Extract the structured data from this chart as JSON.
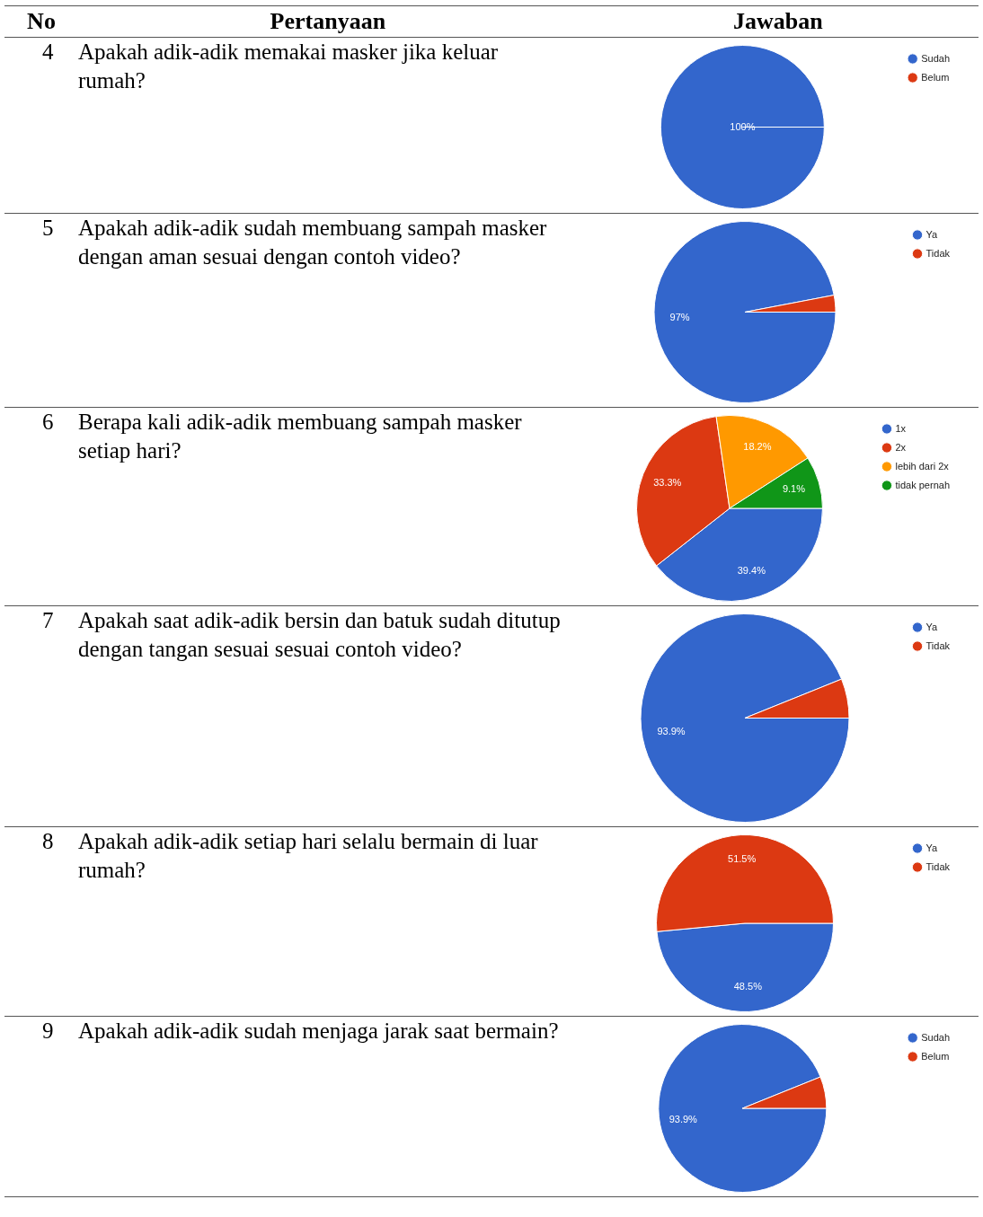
{
  "chart_data": [
    {
      "type": "other",
      "annotations": [
        "No",
        "Pertanyaan",
        "Jawaban"
      ]
    },
    {
      "type": "pie",
      "annotations": [
        "4"
      ],
      "title": "Apakah adik-adik memakai masker jika keluar rumah?",
      "categories": [
        "Sudah",
        "Belum"
      ],
      "values": [
        100,
        0
      ],
      "colors": [
        "#3366cc",
        "#dc3912"
      ],
      "value_labels": [
        "100%",
        null
      ],
      "legend": "right"
    },
    {
      "type": "pie",
      "annotations": [
        "5"
      ],
      "title": "Apakah adik-adik sudah membuang sampah masker dengan aman sesuai dengan contoh video?",
      "categories": [
        "Ya",
        "Tidak"
      ],
      "values": [
        97,
        3
      ],
      "colors": [
        "#3366cc",
        "#dc3912"
      ],
      "value_labels": [
        "97%",
        null
      ],
      "legend": "right"
    },
    {
      "type": "pie",
      "annotations": [
        "6"
      ],
      "title": "Berapa kali adik-adik membuang sampah masker setiap hari?",
      "categories": [
        "1x",
        "2x",
        "lebih dari 2x",
        "tidak pernah"
      ],
      "values": [
        39.4,
        33.3,
        18.2,
        9.1
      ],
      "colors": [
        "#3366cc",
        "#dc3912",
        "#ff9900",
        "#109618"
      ],
      "value_labels": [
        "39.4%",
        "33.3%",
        "18.2%",
        "9.1%"
      ],
      "legend": "right"
    },
    {
      "type": "pie",
      "annotations": [
        "7"
      ],
      "title": "Apakah saat adik-adik bersin dan batuk sudah ditutup dengan tangan sesuai sesuai contoh video?",
      "categories": [
        "Ya",
        "Tidak"
      ],
      "values": [
        93.9,
        6.1
      ],
      "colors": [
        "#3366cc",
        "#dc3912"
      ],
      "value_labels": [
        "93.9%",
        null
      ],
      "legend": "right"
    },
    {
      "type": "pie",
      "annotations": [
        "8"
      ],
      "title": "Apakah adik-adik setiap hari selalu bermain di luar rumah?",
      "categories": [
        "Ya",
        "Tidak"
      ],
      "values": [
        48.5,
        51.5
      ],
      "colors": [
        "#3366cc",
        "#dc3912"
      ],
      "value_labels": [
        "48.5%",
        "51.5%"
      ],
      "legend": "right"
    },
    {
      "type": "pie",
      "annotations": [
        "9"
      ],
      "title": "Apakah adik-adik sudah menjaga jarak saat bermain?",
      "categories": [
        "Sudah",
        "Belum"
      ],
      "values": [
        93.9,
        6.1
      ],
      "colors": [
        "#3366cc",
        "#dc3912"
      ],
      "value_labels": [
        "93.9%",
        null
      ],
      "legend": "right"
    }
  ]
}
